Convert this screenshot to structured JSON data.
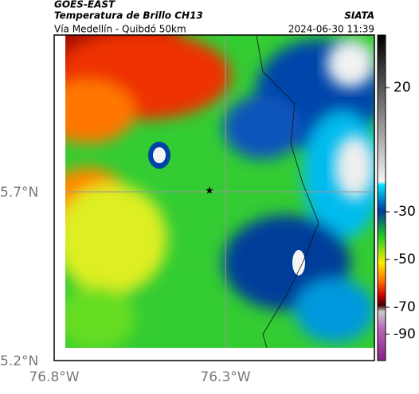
{
  "header": {
    "source": "GOES-EAST",
    "title": "Temperatura de Brillo CH13",
    "org": "SIATA",
    "subtitle": "Vía Medellín - Quibdó 50km",
    "timestamp": "2024-06-30 11:39"
  },
  "axes": {
    "lat_labels": [
      "5.7°N",
      "5.2°N"
    ],
    "lon_labels": [
      "76.8°W",
      "76.3°W"
    ]
  },
  "colorbar": {
    "ticks": [
      20,
      -30,
      -50,
      -70,
      -90
    ]
  }
}
